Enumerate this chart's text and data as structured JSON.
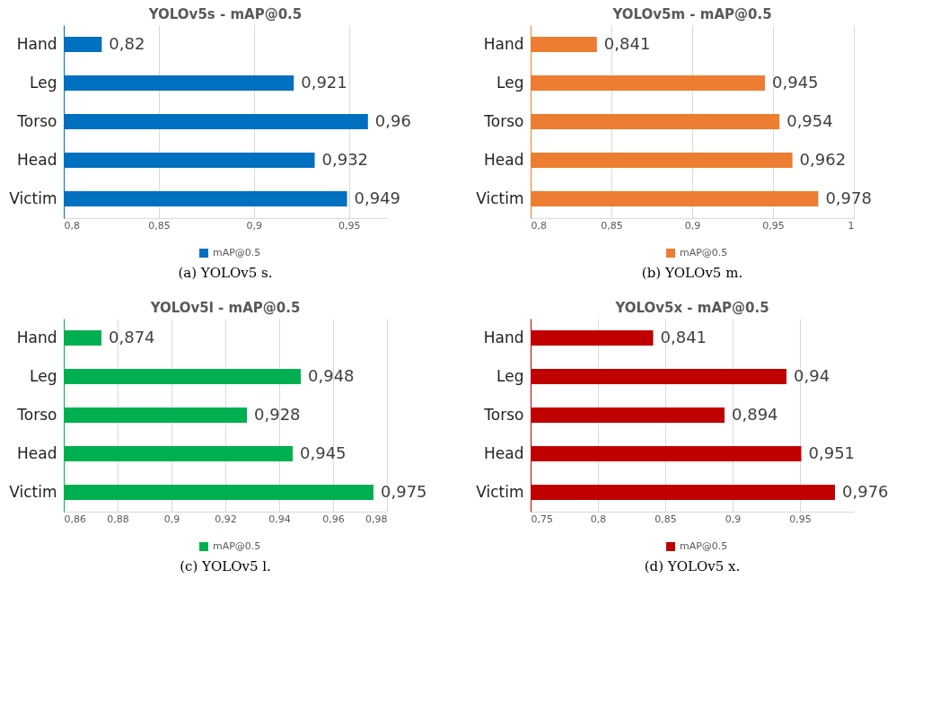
{
  "chart_data": [
    {
      "type": "bar",
      "orientation": "horizontal",
      "title": "YOLOv5s - mAP@0.5",
      "categories": [
        "Hand",
        "Leg",
        "Torso",
        "Head",
        "Victim"
      ],
      "series": [
        {
          "name": "mAP@0.5",
          "color": "#0070c0",
          "values": [
            0.82,
            0.921,
            0.96,
            0.932,
            0.949
          ],
          "value_labels": [
            "0,82",
            "0,921",
            "0,96",
            "0,932",
            "0,949"
          ]
        }
      ],
      "xlim": [
        0.8,
        0.97
      ],
      "xticks": [
        {
          "value": 0.8,
          "label": "0,8"
        },
        {
          "value": 0.85,
          "label": "0,85"
        },
        {
          "value": 0.9,
          "label": "0,9"
        },
        {
          "value": 0.95,
          "label": "0,95"
        }
      ],
      "grid": "x",
      "legend": "bottom",
      "annotations": [
        "(a)  YOLOv5 s."
      ]
    },
    {
      "type": "bar",
      "orientation": "horizontal",
      "title": "YOLOv5m - mAP@0.5",
      "categories": [
        "Hand",
        "Leg",
        "Torso",
        "Head",
        "Victim"
      ],
      "series": [
        {
          "name": "mAP@0.5",
          "color": "#ed7d31",
          "values": [
            0.841,
            0.945,
            0.954,
            0.962,
            0.978
          ],
          "value_labels": [
            "0,841",
            "0,945",
            "0,954",
            "0,962",
            "0,978"
          ]
        }
      ],
      "xlim": [
        0.8,
        1
      ],
      "xticks": [
        {
          "value": 0.8,
          "label": "0,8"
        },
        {
          "value": 0.85,
          "label": "0,85"
        },
        {
          "value": 0.9,
          "label": "0,9"
        },
        {
          "value": 0.95,
          "label": "0,95"
        },
        1
      ],
      "grid": "x",
      "legend": "bottom",
      "annotations": [
        "(b)  YOLOv5 m."
      ]
    },
    {
      "type": "bar",
      "orientation": "horizontal",
      "title": "YOLOv5l - mAP@0.5",
      "categories": [
        "Hand",
        "Leg",
        "Torso",
        "Head",
        "Victim"
      ],
      "series": [
        {
          "name": "mAP@0.5",
          "color": "#00b050",
          "values": [
            0.874,
            0.948,
            0.928,
            0.945,
            0.975
          ],
          "value_labels": [
            "0,874",
            "0,948",
            "0,928",
            "0,945",
            "0,975"
          ]
        }
      ],
      "xlim": [
        0.86,
        0.98
      ],
      "xticks": [
        {
          "value": 0.86,
          "label": "0,86"
        },
        {
          "value": 0.88,
          "label": "0,88"
        },
        {
          "value": 0.9,
          "label": "0,9"
        },
        {
          "value": 0.92,
          "label": "0,92"
        },
        {
          "value": 0.94,
          "label": "0,94"
        },
        {
          "value": 0.96,
          "label": "0,96"
        },
        {
          "value": 0.98,
          "label": "0,98"
        }
      ],
      "grid": "x",
      "legend": "bottom",
      "annotations": [
        "(c)  YOLOv5 l."
      ]
    },
    {
      "type": "bar",
      "orientation": "horizontal",
      "title": "YOLOv5x - mAP@0.5",
      "categories": [
        "Hand",
        "Leg",
        "Torso",
        "Head",
        "Victim"
      ],
      "series": [
        {
          "name": "mAP@0.5",
          "color": "#c00000",
          "values": [
            0.841,
            0.94,
            0.894,
            0.951,
            0.976
          ],
          "value_labels": [
            "0,841",
            "0,94",
            "0,894",
            "0,951",
            "0,976"
          ]
        }
      ],
      "xlim": [
        0.75,
        0.99
      ],
      "xticks": [
        {
          "value": 0.75,
          "label": "0,75"
        },
        {
          "value": 0.8,
          "label": "0,8"
        },
        {
          "value": 0.85,
          "label": "0,85"
        },
        {
          "value": 0.9,
          "label": "0,9"
        },
        {
          "value": 0.95,
          "label": "0,95"
        }
      ],
      "grid": "x",
      "legend": "bottom",
      "annotations": [
        "(d)  YOLOv5 x."
      ]
    }
  ]
}
